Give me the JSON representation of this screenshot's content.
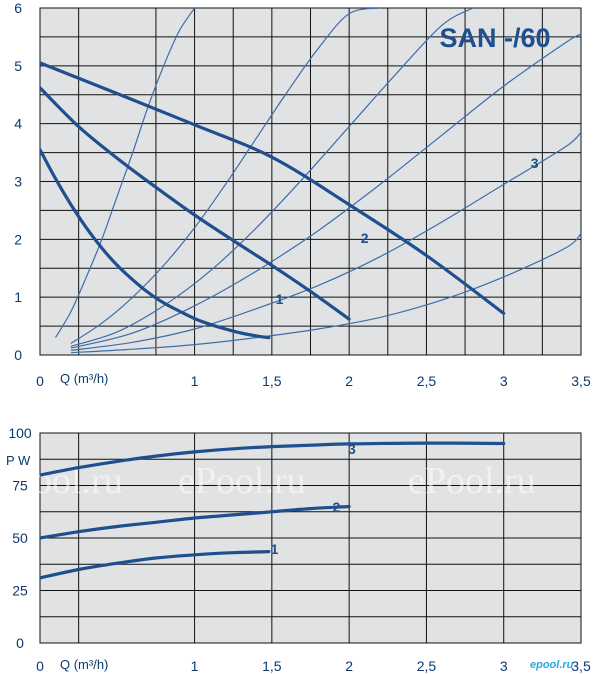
{
  "chart_data": [
    {
      "type": "line",
      "title": "SAN -/60",
      "xlabel": "Q (m³/h)",
      "ylabel": "",
      "xlim": [
        0,
        3.5
      ],
      "ylim": [
        0,
        6
      ],
      "x_ticks": [
        {
          "v": 0,
          "label": "0"
        },
        {
          "v": 1,
          "label": "1"
        },
        {
          "v": 1.5,
          "label": "1,5"
        },
        {
          "v": 2,
          "label": "2"
        },
        {
          "v": 2.5,
          "label": "2,5"
        },
        {
          "v": 3,
          "label": "3"
        },
        {
          "v": 3.5,
          "label": "3,5"
        }
      ],
      "y_ticks": [
        {
          "v": 0,
          "label": "0"
        },
        {
          "v": 1,
          "label": "1"
        },
        {
          "v": 2,
          "label": "2"
        },
        {
          "v": 3,
          "label": "3"
        },
        {
          "v": 4,
          "label": "4"
        },
        {
          "v": 5,
          "label": "5"
        },
        {
          "v": 6,
          "label": "6"
        }
      ],
      "grid": true,
      "series": [
        {
          "name": "1",
          "x": [
            0,
            0.1,
            0.2,
            0.3,
            0.4,
            0.5,
            0.6,
            0.7,
            0.8,
            0.9,
            1.0,
            1.1,
            1.2,
            1.3,
            1.4,
            1.48
          ],
          "y": [
            3.55,
            3.05,
            2.6,
            2.2,
            1.85,
            1.55,
            1.3,
            1.08,
            0.9,
            0.76,
            0.63,
            0.53,
            0.45,
            0.38,
            0.33,
            0.3
          ]
        },
        {
          "name": "2",
          "x": [
            0,
            0.25,
            0.5,
            0.75,
            1.0,
            1.25,
            1.5,
            1.75,
            2.0
          ],
          "y": [
            4.62,
            3.95,
            3.4,
            2.9,
            2.42,
            1.98,
            1.55,
            1.1,
            0.62
          ]
        },
        {
          "name": "3",
          "x": [
            0,
            0.5,
            1.0,
            1.5,
            2.0,
            2.5,
            3.0
          ],
          "y": [
            5.05,
            4.52,
            3.98,
            3.42,
            2.6,
            1.72,
            0.72
          ]
        }
      ],
      "system_curves": [
        {
          "x": [
            0.1,
            0.2,
            0.3,
            0.4,
            0.5,
            0.6,
            0.7,
            0.8,
            0.9,
            1.0
          ],
          "y": [
            0.3,
            0.75,
            1.35,
            2.0,
            2.75,
            3.5,
            4.3,
            5.0,
            5.6,
            6.0
          ]
        },
        {
          "x": [
            0.2,
            0.4,
            0.6,
            0.8,
            1.0,
            1.2,
            1.4,
            1.6,
            1.8,
            2.0,
            2.2
          ],
          "y": [
            0.2,
            0.55,
            1.0,
            1.55,
            2.2,
            2.95,
            3.75,
            4.55,
            5.3,
            5.9,
            6.0
          ]
        },
        {
          "x": [
            0.2,
            0.5,
            0.8,
            1.1,
            1.4,
            1.7,
            2.0,
            2.3,
            2.6,
            2.8
          ],
          "y": [
            0.15,
            0.4,
            0.85,
            1.45,
            2.2,
            3.05,
            3.95,
            4.85,
            5.7,
            6.0
          ]
        },
        {
          "x": [
            0.2,
            0.6,
            1.0,
            1.4,
            1.8,
            2.2,
            2.6,
            3.0,
            3.4,
            3.5
          ],
          "y": [
            0.12,
            0.38,
            0.85,
            1.45,
            2.15,
            2.95,
            3.8,
            4.65,
            5.4,
            5.55
          ]
        },
        {
          "x": [
            0.2,
            0.6,
            1.0,
            1.4,
            1.8,
            2.2,
            2.6,
            3.0,
            3.4,
            3.5
          ],
          "y": [
            0.08,
            0.22,
            0.45,
            0.8,
            1.2,
            1.7,
            2.3,
            2.95,
            3.6,
            3.85
          ]
        },
        {
          "x": [
            0.2,
            0.6,
            1.0,
            1.4,
            1.8,
            2.2,
            2.6,
            3.0,
            3.4,
            3.5
          ],
          "y": [
            0.04,
            0.1,
            0.18,
            0.3,
            0.45,
            0.65,
            0.95,
            1.35,
            1.85,
            2.1
          ]
        }
      ]
    },
    {
      "type": "line",
      "title": "",
      "xlabel": "Q (m³/h)",
      "ylabel": "P W",
      "xlim": [
        0,
        3.5
      ],
      "ylim": [
        0,
        100
      ],
      "x_ticks": [
        {
          "v": 0,
          "label": "0"
        },
        {
          "v": 1,
          "label": "1"
        },
        {
          "v": 1.5,
          "label": "1,5"
        },
        {
          "v": 2,
          "label": "2"
        },
        {
          "v": 2.5,
          "label": "2,5"
        },
        {
          "v": 3,
          "label": "3"
        },
        {
          "v": 3.5,
          "label": "3,5"
        }
      ],
      "y_ticks": [
        {
          "v": 0,
          "label": "0"
        },
        {
          "v": 25,
          "label": "25"
        },
        {
          "v": 50,
          "label": "50"
        },
        {
          "v": 75,
          "label": "75"
        },
        {
          "v": 100,
          "label": "100"
        }
      ],
      "grid": true,
      "series": [
        {
          "name": "1",
          "x": [
            0,
            0.25,
            0.5,
            0.75,
            1.0,
            1.25,
            1.48
          ],
          "y": [
            31,
            35,
            38,
            40.5,
            42,
            43,
            43.5
          ]
        },
        {
          "name": "2",
          "x": [
            0,
            0.25,
            0.5,
            0.75,
            1.0,
            1.25,
            1.5,
            1.75,
            2.0
          ],
          "y": [
            50,
            53,
            55.5,
            57.5,
            59.5,
            61,
            62.5,
            64,
            65
          ]
        },
        {
          "name": "3",
          "x": [
            0,
            0.25,
            0.5,
            0.75,
            1.0,
            1.25,
            1.5,
            1.75,
            2.0,
            2.5,
            3.0
          ],
          "y": [
            80,
            83.5,
            86.5,
            89,
            91,
            92.5,
            93.5,
            94.2,
            94.8,
            95.2,
            95
          ]
        }
      ]
    }
  ],
  "watermark": "ePool.ru",
  "logo": "epool.ru",
  "colors": {
    "plot_bg": "#e1e2e3",
    "grid": "#111111",
    "pump_curve": "#1f4f8f",
    "system_curve": "#3d6ea8",
    "text": "#0b3a6e"
  }
}
